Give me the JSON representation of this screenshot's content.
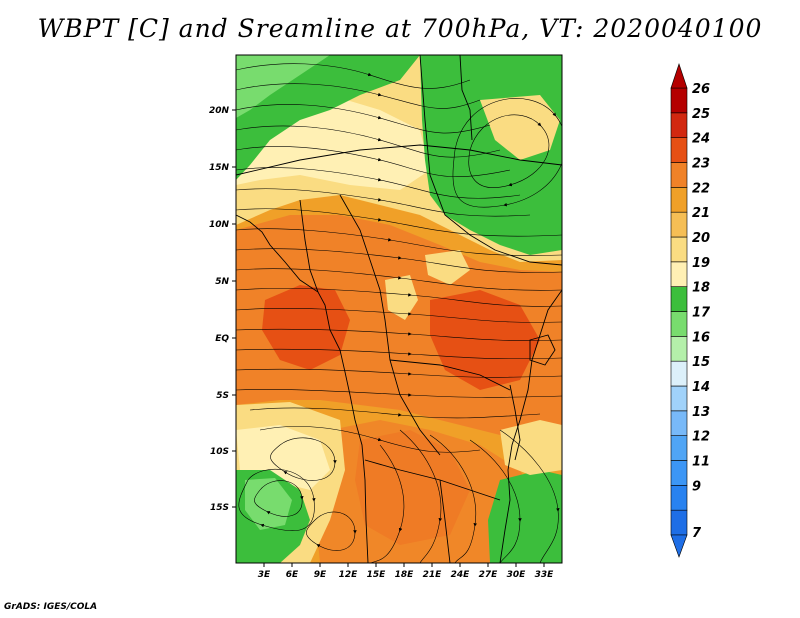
{
  "title": "WBPT [C] and Sreamline at 700hPa, VT: 2020040100",
  "credit": "GrADS: IGES/COLA",
  "map": {
    "lat_labels": [
      "20N",
      "15N",
      "10N",
      "5N",
      "EQ",
      "5S",
      "10S",
      "15S"
    ],
    "lon_labels": [
      "3E",
      "6E",
      "9E",
      "12E",
      "15E",
      "18E",
      "21E",
      "24E",
      "27E",
      "30E",
      "33E"
    ],
    "variable": "WBPT [C]",
    "level": "700hPa",
    "valid_time": "2020040100"
  },
  "colorbar": {
    "labels": [
      "7",
      "9",
      "11",
      "12",
      "13",
      "14",
      "15",
      "16",
      "17",
      "18",
      "19",
      "20",
      "21",
      "22",
      "23",
      "24",
      "25",
      "26"
    ],
    "colors": [
      "#1e6ee6",
      "#2882f0",
      "#3c96f5",
      "#50a5f5",
      "#78b9f8",
      "#a0d2fa",
      "#dcf0fa",
      "#b4f0aa",
      "#78dc6e",
      "#3cbe3c",
      "#fff0b4",
      "#fadc82",
      "#f5be55",
      "#f0a028",
      "#f08228",
      "#e65014",
      "#d22810",
      "#b40000"
    ]
  },
  "colors": {
    "warm_dark": "#e65014",
    "warm_mid": "#f08228",
    "warm_light": "#f0a028",
    "tan": "#fadc82",
    "pale": "#fff0b4",
    "green": "#3cbe3c",
    "light_green": "#78dc6e"
  }
}
